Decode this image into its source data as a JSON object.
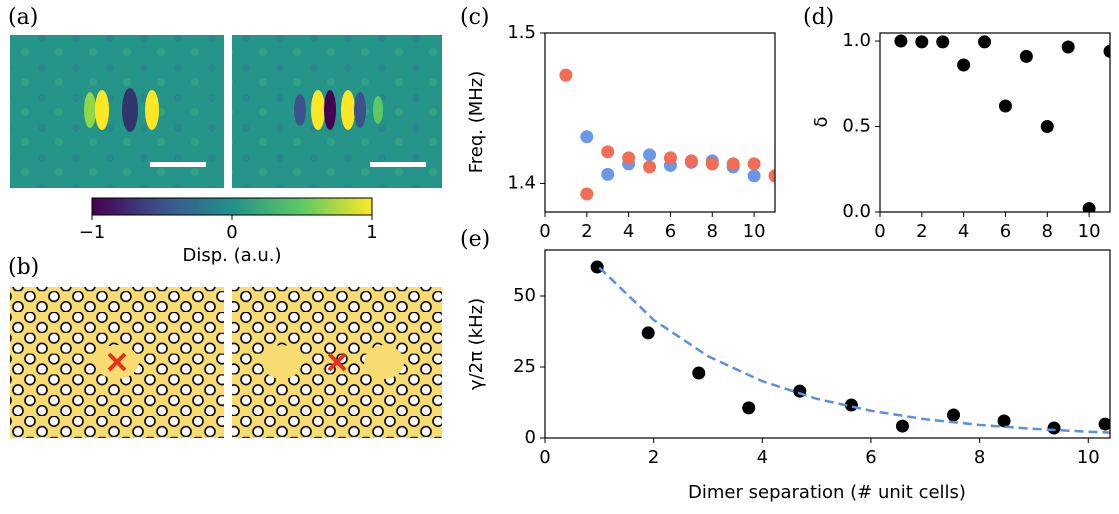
{
  "panels": {
    "a": "(a)",
    "b": "(b)"
  },
  "colorbar": {
    "ticks": [
      {
        "value": -1,
        "label": "−1"
      },
      0,
      1
    ],
    "label": "Disp. (a.u.)"
  },
  "chart_data": [
    {
      "type": "scatter",
      "label": "(c)",
      "ylabel": "Freq. (MHz)",
      "x": [
        1,
        2,
        3,
        4,
        5,
        6,
        7,
        8,
        9,
        10,
        11
      ],
      "series": [
        {
          "color": "#6a97e8",
          "values": [
            null,
            1.431,
            1.406,
            1.413,
            1.419,
            1.412,
            1.414,
            1.415,
            1.411,
            1.405,
            null
          ]
        },
        {
          "color": "#f36c55",
          "values": [
            1.472,
            1.393,
            1.421,
            1.417,
            1.411,
            1.417,
            1.415,
            1.413,
            1.413,
            1.413,
            1.405
          ]
        }
      ],
      "xlim": [
        0,
        11
      ],
      "xticks": [
        0,
        2,
        4,
        6,
        8,
        10
      ],
      "ylim": [
        1.381,
        1.5
      ],
      "yticks": [
        1.4,
        1.5
      ]
    },
    {
      "type": "scatter",
      "label": "(d)",
      "ylabel": "δ",
      "x": [
        1,
        2,
        3,
        4,
        5,
        6,
        7,
        8,
        9,
        10,
        11
      ],
      "series": [
        {
          "color": "#000000",
          "values": [
            1.0,
            0.995,
            0.995,
            0.86,
            0.995,
            0.62,
            0.91,
            0.5,
            0.965,
            0.02,
            0.94
          ]
        }
      ],
      "xlim": [
        0,
        11
      ],
      "xticks": [
        0,
        2,
        4,
        6,
        8,
        10
      ],
      "ylim": [
        0,
        1.047
      ],
      "yticks": [
        {
          "value": 0,
          "label": "0.0"
        },
        0.5,
        {
          "value": 1,
          "label": "1.0"
        }
      ]
    },
    {
      "type": "scatter",
      "label": "(e)",
      "ylabel": "γ/2π (kHz)",
      "xlabel": "Dimer separation (# unit cells)",
      "series": [
        {
          "color": "#000000",
          "x": [
            0.96,
            1.9,
            2.83,
            3.75,
            4.69,
            5.64,
            6.58,
            7.52,
            8.45,
            9.37,
            10.31
          ],
          "values": [
            60.2,
            37,
            22.9,
            10.6,
            16.5,
            11.6,
            4.2,
            8.1,
            6,
            3.5,
            4.9
          ]
        },
        {
          "color": "#5b8fe0",
          "line": "dashed",
          "x": [
            1,
            2,
            3,
            4,
            5,
            6,
            7,
            8,
            9,
            10,
            10.4
          ],
          "values": [
            60,
            41.6,
            28.8,
            20,
            13.8,
            9.6,
            6.6,
            4.6,
            3.2,
            2.2,
            1.9
          ]
        }
      ],
      "xlim": [
        0,
        10.4
      ],
      "xticks": [
        0,
        2,
        4,
        6,
        8,
        10
      ],
      "ylim": [
        0,
        66.2
      ],
      "yticks": [
        0,
        25,
        50
      ]
    }
  ]
}
